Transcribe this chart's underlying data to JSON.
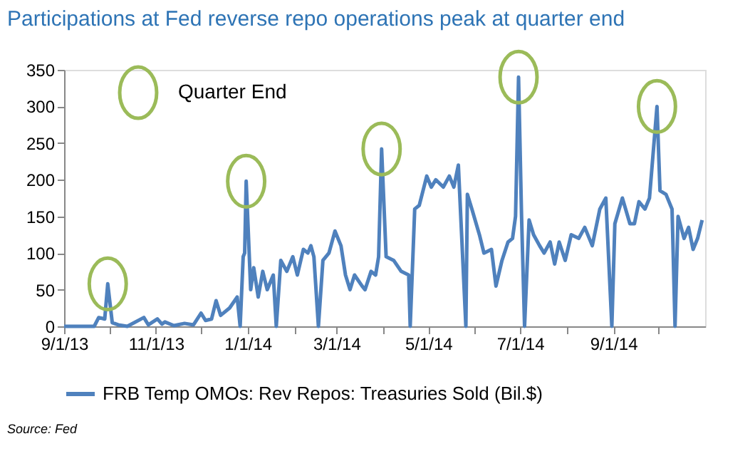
{
  "chart_data": {
    "type": "line",
    "title": "Participations at Fed reverse repo operations peak at quarter end",
    "annotations": [
      "Quarter End",
      "Source: Fed"
    ],
    "xlim": [
      "2013-09-01",
      "2014-11-01"
    ],
    "xticks": [
      {
        "value": "2013-09-01",
        "label": "9/1/13"
      },
      {
        "value": "2013-10-01",
        "label": null
      },
      {
        "value": "2013-11-01",
        "label": "11/1/13"
      },
      {
        "value": "2013-12-01",
        "label": null
      },
      {
        "value": "2014-01-01",
        "label": "1/1/14"
      },
      {
        "value": "2014-02-01",
        "label": null
      },
      {
        "value": "2014-03-01",
        "label": "3/1/14"
      },
      {
        "value": "2014-04-01",
        "label": null
      },
      {
        "value": "2014-05-01",
        "label": "5/1/14"
      },
      {
        "value": "2014-06-01",
        "label": null
      },
      {
        "value": "2014-07-01",
        "label": "7/1/14"
      },
      {
        "value": "2014-08-01",
        "label": null
      },
      {
        "value": "2014-09-01",
        "label": "9/1/14"
      },
      {
        "value": "2014-10-01",
        "label": null
      }
    ],
    "ylim": [
      0,
      350
    ],
    "yticks": [
      0,
      50,
      100,
      150,
      200,
      250,
      300,
      350
    ],
    "grid": false,
    "legend": "bottom",
    "marker": "none",
    "line_style": "solid",
    "series": [
      {
        "name": "FRB Temp OMOs: Rev Repos: Treasuries Sold (Bil.$)",
        "color": "#4f81bd",
        "x": [
          "2013-09-01",
          "2013-09-21",
          "2013-09-24",
          "2013-09-28",
          "2013-09-30",
          "2013-10-03",
          "2013-10-07",
          "2013-10-13",
          "2013-10-24",
          "2013-10-27",
          "2013-11-02",
          "2013-11-05",
          "2013-11-07",
          "2013-11-13",
          "2013-11-20",
          "2013-11-26",
          "2013-12-01",
          "2013-12-04",
          "2013-12-08",
          "2013-12-11",
          "2013-12-14",
          "2013-12-20",
          "2013-12-25",
          "2013-12-27",
          "2013-12-29",
          "2013-12-30",
          "2013-12-31",
          "2014-01-03",
          "2014-01-05",
          "2014-01-08",
          "2014-01-11",
          "2014-01-14",
          "2014-01-18",
          "2014-01-20",
          "2014-01-23",
          "2014-01-27",
          "2014-01-31",
          "2014-02-03",
          "2014-02-07",
          "2014-02-10",
          "2014-02-12",
          "2014-02-14",
          "2014-02-17",
          "2014-02-20",
          "2014-02-24",
          "2014-02-28",
          "2014-03-04",
          "2014-03-07",
          "2014-03-10",
          "2014-03-13",
          "2014-03-18",
          "2014-03-20",
          "2014-03-24",
          "2014-03-27",
          "2014-03-29",
          "2014-03-31",
          "2014-04-03",
          "2014-04-08",
          "2014-04-13",
          "2014-04-18",
          "2014-04-19",
          "2014-04-22",
          "2014-04-25",
          "2014-04-30",
          "2014-05-03",
          "2014-05-06",
          "2014-05-11",
          "2014-05-15",
          "2014-05-18",
          "2014-05-21",
          "2014-05-26",
          "2014-05-27",
          "2014-05-30",
          "2014-06-04",
          "2014-06-07",
          "2014-06-12",
          "2014-06-15",
          "2014-06-19",
          "2014-06-23",
          "2014-06-26",
          "2014-06-28",
          "2014-06-30",
          "2014-07-02",
          "2014-07-04",
          "2014-07-07",
          "2014-07-10",
          "2014-07-14",
          "2014-07-17",
          "2014-07-21",
          "2014-07-24",
          "2014-07-27",
          "2014-07-31",
          "2014-08-04",
          "2014-08-09",
          "2014-08-13",
          "2014-08-18",
          "2014-08-23",
          "2014-08-27",
          "2014-08-31",
          "2014-09-02",
          "2014-09-07",
          "2014-09-12",
          "2014-09-15",
          "2014-09-18",
          "2014-09-22",
          "2014-09-25",
          "2014-09-30",
          "2014-10-02",
          "2014-10-06",
          "2014-10-10",
          "2014-10-12",
          "2014-10-14",
          "2014-10-18",
          "2014-10-21",
          "2014-10-24",
          "2014-10-27",
          "2014-10-30"
        ],
        "values": [
          0,
          0,
          12,
          10,
          58,
          5,
          2,
          0,
          12,
          2,
          10,
          3,
          6,
          1,
          4,
          2,
          18,
          8,
          10,
          35,
          15,
          25,
          40,
          0,
          95,
          100,
          198,
          50,
          80,
          40,
          75,
          50,
          70,
          0,
          90,
          75,
          95,
          70,
          105,
          100,
          110,
          95,
          0,
          90,
          100,
          130,
          110,
          70,
          50,
          70,
          55,
          50,
          75,
          70,
          95,
          242,
          95,
          90,
          75,
          70,
          0,
          160,
          165,
          205,
          190,
          200,
          190,
          205,
          190,
          220,
          0,
          180,
          160,
          125,
          100,
          105,
          55,
          90,
          115,
          120,
          150,
          340,
          150,
          0,
          145,
          125,
          110,
          100,
          115,
          85,
          115,
          90,
          125,
          120,
          135,
          110,
          160,
          175,
          0,
          140,
          175,
          140,
          140,
          170,
          160,
          175,
          300,
          185,
          180,
          160,
          0,
          150,
          120,
          135,
          105,
          120,
          145
        ]
      }
    ]
  }
}
